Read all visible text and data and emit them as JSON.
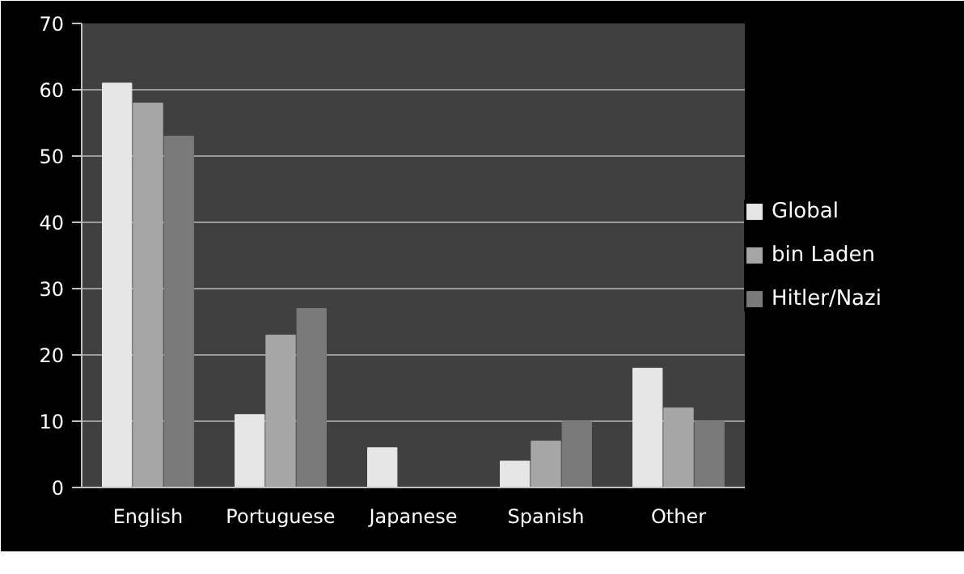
{
  "chart_data": {
    "type": "bar",
    "categories": [
      "English",
      "Portuguese",
      "Japanese",
      "Spanish",
      "Other"
    ],
    "series": [
      {
        "name": "Global",
        "color": "#e6e6e6",
        "values": [
          61,
          11,
          6,
          4,
          18
        ]
      },
      {
        "name": "bin Laden",
        "color": "#a6a6a6",
        "values": [
          58,
          23,
          null,
          7,
          12
        ]
      },
      {
        "name": "Hitler/Nazi",
        "color": "#7a7a7a",
        "values": [
          53,
          27,
          null,
          10,
          10
        ]
      }
    ],
    "ylim": [
      0,
      70
    ],
    "yticks": [
      0,
      10,
      20,
      30,
      40,
      50,
      60,
      70
    ],
    "grid": "y",
    "legend": "right"
  }
}
